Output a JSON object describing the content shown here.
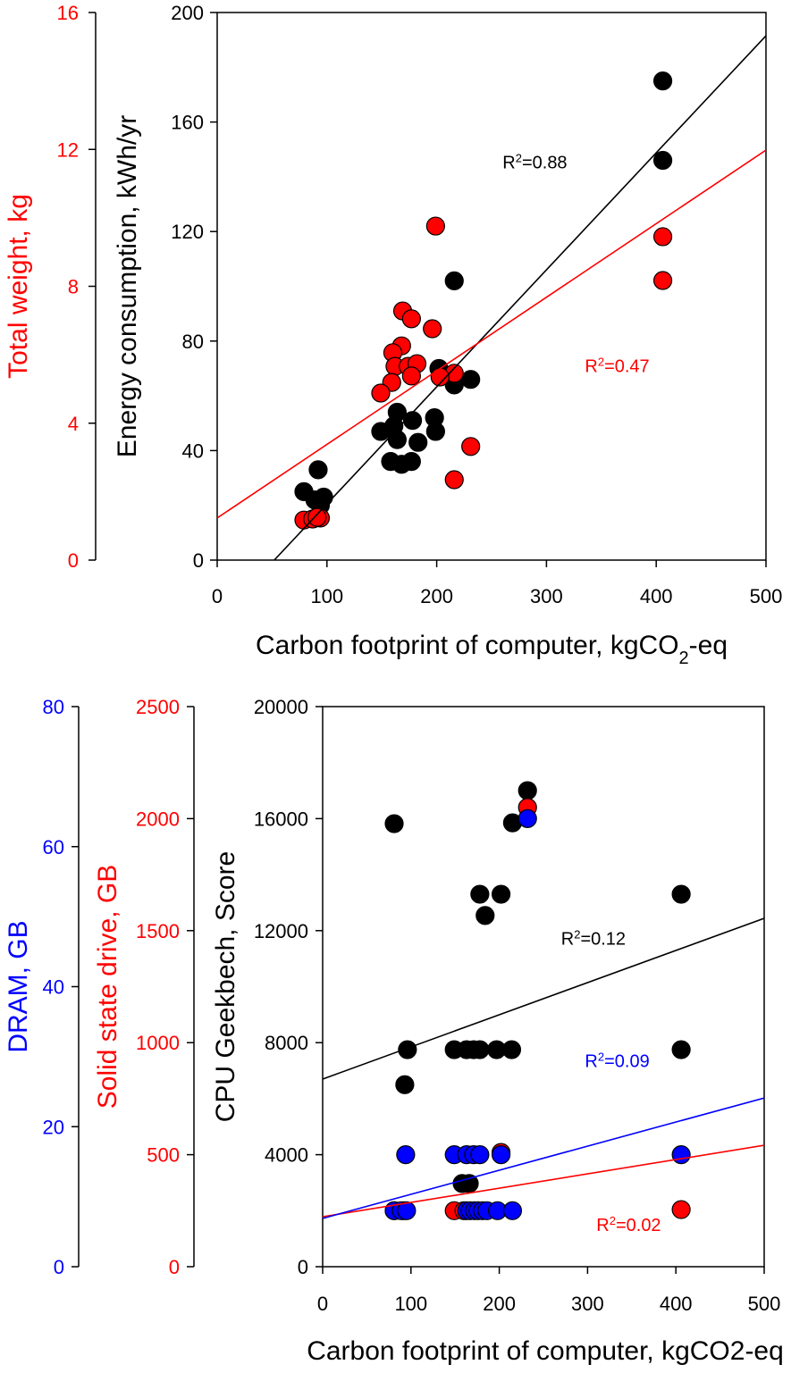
{
  "colors": {
    "black": "#000000",
    "red": "#ff0000",
    "blue": "#0000ff"
  },
  "chart_data": [
    {
      "type": "scatter",
      "xlabel": "Carbon footprint of computer, kgCO",
      "xlabel_sub": "2",
      "xlabel_tail": "-eq",
      "xlim": [
        0,
        500
      ],
      "x_ticks": [
        "0",
        "100",
        "200",
        "300",
        "400",
        "500"
      ],
      "axes": [
        {
          "id": "energy",
          "label": "Energy consumption, kWh/yr",
          "ylim": [
            0,
            200
          ],
          "ticks": [
            "0",
            "40",
            "80",
            "120",
            "160",
            "200"
          ],
          "color": "#000000"
        },
        {
          "id": "weight",
          "label": "Total weight, kg",
          "ylim": [
            0,
            16
          ],
          "ticks": [
            "0",
            "4",
            "8",
            "12",
            "16"
          ],
          "color": "#ff0000"
        }
      ],
      "series": [
        {
          "name": "Energy consumption",
          "axis": "energy",
          "color": "#000000",
          "points": [
            [
              406,
              175
            ],
            [
              406,
              146
            ],
            [
              216,
              102
            ],
            [
              231,
              66
            ],
            [
              202,
              70
            ],
            [
              216,
              64
            ],
            [
              198,
              52
            ],
            [
              199,
              47
            ],
            [
              178,
              51
            ],
            [
              164,
              54
            ],
            [
              161,
              49
            ],
            [
              149,
              47
            ],
            [
              164,
              44
            ],
            [
              183,
              43
            ],
            [
              158,
              36
            ],
            [
              168,
              35
            ],
            [
              177,
              36
            ],
            [
              92,
              33
            ],
            [
              79,
              25
            ],
            [
              89,
              22
            ],
            [
              97,
              23
            ],
            [
              94,
              20
            ]
          ],
          "fit": {
            "x": [
              52,
              500
            ],
            "y": [
              0,
              191.5
            ]
          },
          "r2_label": "R",
          "r2_value": "=0.88",
          "r2_at": [
            260,
            143
          ]
        },
        {
          "name": "Total weight",
          "axis": "weight",
          "color": "#ff0000",
          "points": [
            [
              199,
              9.76
            ],
            [
              169,
              7.28
            ],
            [
              177,
              7.05
            ],
            [
              196,
              6.76
            ],
            [
              406,
              9.45
            ],
            [
              406,
              8.17
            ],
            [
              168,
              6.26
            ],
            [
              160,
              6.06
            ],
            [
              162,
              5.66
            ],
            [
              174,
              5.66
            ],
            [
              182,
              5.74
            ],
            [
              177,
              5.38
            ],
            [
              216,
              5.46
            ],
            [
              203,
              5.35
            ],
            [
              159,
              5.19
            ],
            [
              149,
              4.88
            ],
            [
              231,
              3.32
            ],
            [
              216,
              2.35
            ],
            [
              79,
              1.17
            ],
            [
              87,
              1.2
            ],
            [
              94,
              1.23
            ],
            [
              91,
              1.25
            ]
          ],
          "fit": {
            "x": [
              0,
              500
            ],
            "y": [
              1.23,
              11.98
            ]
          },
          "r2_label": "R",
          "r2_value": "=0.47",
          "r2_at": [
            335,
            5.5
          ]
        }
      ]
    },
    {
      "type": "scatter",
      "xlabel": "Carbon footprint of computer, kgCO2-eq",
      "xlim": [
        0,
        500
      ],
      "x_ticks": [
        "0",
        "100",
        "200",
        "300",
        "400",
        "500"
      ],
      "axes": [
        {
          "id": "cpu",
          "label": "CPU Geekbech,  Score",
          "ylim": [
            0,
            20000
          ],
          "ticks": [
            "0",
            "4000",
            "8000",
            "12000",
            "16000",
            "20000"
          ],
          "color": "#000000"
        },
        {
          "id": "ssd",
          "label_a": "Solid state drive, ",
          "label_b": "GB",
          "ylim": [
            0,
            2500
          ],
          "ticks": [
            "0",
            "500",
            "1000",
            "1500",
            "2000",
            "2500"
          ],
          "color": "#ff0000"
        },
        {
          "id": "dram",
          "label_a": "DRAM, ",
          "label_b": "GB",
          "ylim": [
            0,
            80
          ],
          "ticks": [
            "0",
            "20",
            "40",
            "60",
            "80"
          ],
          "color": "#0000ff"
        }
      ],
      "series": [
        {
          "name": "CPU score",
          "axis": "cpu",
          "color": "#000000",
          "points": [
            [
              81,
              15820
            ],
            [
              232,
              17000
            ],
            [
              215,
              15850
            ],
            [
              178,
              13300
            ],
            [
              202,
              13300
            ],
            [
              184,
              12540
            ],
            [
              406,
              13300
            ],
            [
              96,
              7750
            ],
            [
              93,
              6500
            ],
            [
              149,
              7750
            ],
            [
              163,
              7750
            ],
            [
              171,
              7750
            ],
            [
              178,
              7750
            ],
            [
              197,
              7750
            ],
            [
              214,
              7750
            ],
            [
              406,
              7750
            ],
            [
              158,
              2970
            ],
            [
              166,
              2970
            ]
          ],
          "fit": {
            "x": [
              0,
              500
            ],
            "y": [
              6700,
              12440
            ]
          },
          "r2_label": "R",
          "r2_value": "=0.12",
          "r2_at": [
            270,
            11500
          ]
        },
        {
          "name": "SSD",
          "axis": "ssd",
          "color": "#ff0000",
          "points": [
            [
              232,
              2050
            ],
            [
              202,
              510
            ],
            [
              149,
              250
            ],
            [
              160,
              250
            ],
            [
              406,
              255
            ],
            [
              81,
              250
            ],
            [
              92,
              250
            ]
          ],
          "fit": {
            "x": [
              0,
              500
            ],
            "y": [
              223,
              542
            ]
          },
          "r2_label": "R",
          "r2_value": "=0.02",
          "r2_at": [
            310,
            160
          ]
        },
        {
          "name": "DRAM",
          "axis": "dram",
          "color": "#0000ff",
          "points": [
            [
              232,
              64
            ],
            [
              94,
              16
            ],
            [
              149,
              16
            ],
            [
              163,
              16
            ],
            [
              171,
              16
            ],
            [
              178,
              16
            ],
            [
              202,
              16
            ],
            [
              406,
              16
            ],
            [
              81,
              8
            ],
            [
              89,
              8
            ],
            [
              95,
              8
            ],
            [
              163,
              8
            ],
            [
              167,
              8
            ],
            [
              172,
              8
            ],
            [
              176,
              8
            ],
            [
              181,
              8
            ],
            [
              186,
              8
            ],
            [
              198,
              8
            ],
            [
              215,
              8
            ]
          ],
          "fit": {
            "x": [
              0,
              500
            ],
            "y": [
              6.9,
              24.1
            ]
          },
          "r2_label": "R",
          "r2_value": "=0.09",
          "r2_at": [
            297,
            28.5
          ]
        }
      ]
    }
  ]
}
